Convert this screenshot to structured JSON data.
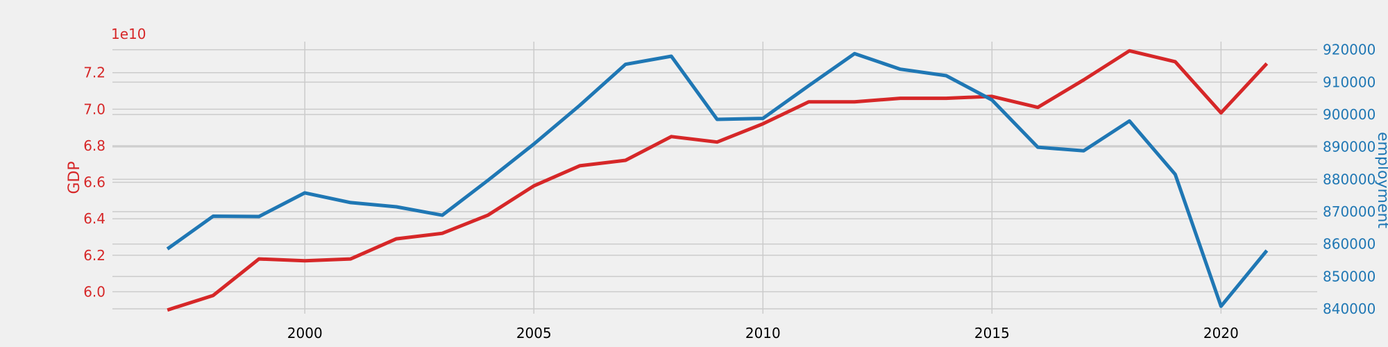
{
  "colors": {
    "background": "#f0f0f0",
    "grid": "#cbcbcb",
    "gdp": "#d62728",
    "employment": "#1f77b4",
    "xtick": "#000000"
  },
  "chart_data": {
    "type": "line",
    "title": "",
    "xlabel": "",
    "ylabel_left": "GDP",
    "ylabel_right": "employment",
    "left_offset_label": "1e10",
    "grid": true,
    "xlim": [
      1995.8,
      2022.1
    ],
    "ylim_left": [
      5.88,
      7.37
    ],
    "ylim_right": [
      838500,
      922500
    ],
    "x_ticks": [
      2000,
      2005,
      2010,
      2015,
      2020
    ],
    "y_left_ticks": [
      6.0,
      6.2,
      6.4,
      6.6,
      6.8,
      7.0,
      7.2
    ],
    "y_right_ticks": [
      840000,
      850000,
      860000,
      870000,
      880000,
      890000,
      900000,
      910000,
      920000
    ],
    "x": [
      1997,
      1998,
      1999,
      2000,
      2001,
      2002,
      2003,
      2004,
      2005,
      2006,
      2007,
      2008,
      2009,
      2010,
      2011,
      2012,
      2013,
      2014,
      2015,
      2016,
      2017,
      2018,
      2019,
      2020,
      2021
    ],
    "series": [
      {
        "name": "GDP",
        "axis": "left",
        "values": [
          5.9,
          5.98,
          6.18,
          6.17,
          6.18,
          6.29,
          6.32,
          6.42,
          6.58,
          6.69,
          6.72,
          6.85,
          6.82,
          6.92,
          7.04,
          7.04,
          7.06,
          7.06,
          7.07,
          7.01,
          7.16,
          7.32,
          7.26,
          6.98,
          7.25
        ]
      },
      {
        "name": "employment",
        "axis": "right",
        "values": [
          858500,
          868600,
          868500,
          875800,
          872800,
          871500,
          868900,
          879700,
          890900,
          902800,
          915500,
          918000,
          898500,
          898800,
          908900,
          918800,
          914000,
          912000,
          904500,
          889900,
          888800,
          898000,
          881500,
          840800,
          858000
        ]
      }
    ]
  }
}
